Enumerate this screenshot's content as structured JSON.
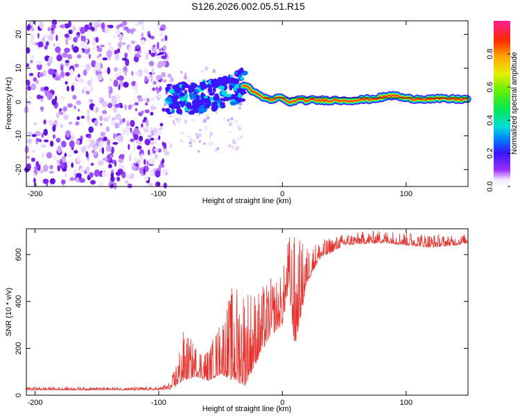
{
  "title": "S126.2026.002.05.51.R15",
  "chart_data": [
    {
      "type": "heatmap",
      "name": "spectrogram",
      "xlabel": "Height of straight line (km)",
      "ylabel": "Frequency (Hz)",
      "xlim": [
        -207,
        150
      ],
      "ylim": [
        -25,
        24
      ],
      "xticks": [
        -200,
        -100,
        0,
        100
      ],
      "yticks": [
        -20,
        -10,
        0,
        10,
        20
      ],
      "colorbar": {
        "label": "Normalized spectral amplitude",
        "range": [
          0,
          1
        ],
        "ticks": [
          0.0,
          0.2,
          0.4,
          0.6,
          0.8
        ]
      },
      "ridge": {
        "description_points": [
          {
            "x": -93,
            "y": 0.5
          },
          {
            "x": -80,
            "y": 1.0
          },
          {
            "x": -60,
            "y": 1.5
          },
          {
            "x": -45,
            "y": 3.0
          },
          {
            "x": -35,
            "y": 5.0
          },
          {
            "x": -28,
            "y": 4.5
          },
          {
            "x": -20,
            "y": 2.0
          },
          {
            "x": -10,
            "y": 0.5
          },
          {
            "x": 0,
            "y": 1.5
          },
          {
            "x": 5,
            "y": -0.5
          },
          {
            "x": 10,
            "y": 0.5
          },
          {
            "x": 20,
            "y": 0.5
          },
          {
            "x": 40,
            "y": 0.5
          },
          {
            "x": 60,
            "y": 0.5
          },
          {
            "x": 75,
            "y": 1.0
          },
          {
            "x": 90,
            "y": 2.0
          },
          {
            "x": 100,
            "y": 1.0
          },
          {
            "x": 150,
            "y": 0.8
          }
        ]
      }
    },
    {
      "type": "line",
      "name": "snr",
      "xlabel": "Height of straight line (km)",
      "ylabel": "SNR (10 * v/v)",
      "xlim": [
        -207,
        150
      ],
      "ylim": [
        0,
        710
      ],
      "xticks": [
        -200,
        -100,
        0,
        100
      ],
      "yticks": [
        0,
        200,
        400,
        600
      ],
      "series_color": "#e8322e",
      "envelope": [
        {
          "x": -207,
          "base": 22,
          "peak": 35
        },
        {
          "x": -100,
          "base": 22,
          "peak": 35
        },
        {
          "x": -90,
          "base": 25,
          "peak": 60
        },
        {
          "x": -80,
          "base": 60,
          "peak": 280
        },
        {
          "x": -70,
          "base": 80,
          "peak": 220
        },
        {
          "x": -60,
          "base": 60,
          "peak": 200
        },
        {
          "x": -50,
          "base": 90,
          "peak": 330
        },
        {
          "x": -40,
          "base": 60,
          "peak": 480
        },
        {
          "x": -30,
          "base": 40,
          "peak": 500
        },
        {
          "x": -20,
          "base": 150,
          "peak": 450
        },
        {
          "x": -10,
          "base": 250,
          "peak": 500
        },
        {
          "x": 0,
          "base": 300,
          "peak": 520
        },
        {
          "x": 5,
          "base": 450,
          "peak": 690
        },
        {
          "x": 10,
          "base": 200,
          "peak": 690
        },
        {
          "x": 20,
          "base": 480,
          "peak": 640
        },
        {
          "x": 30,
          "base": 580,
          "peak": 660
        },
        {
          "x": 50,
          "base": 640,
          "peak": 690
        },
        {
          "x": 80,
          "base": 650,
          "peak": 705
        },
        {
          "x": 100,
          "base": 640,
          "peak": 700
        },
        {
          "x": 120,
          "base": 630,
          "peak": 690
        },
        {
          "x": 140,
          "base": 640,
          "peak": 680
        },
        {
          "x": 150,
          "base": 650,
          "peak": 690
        }
      ]
    }
  ],
  "colors": {
    "snr_line": "#e8322e",
    "axis": "#000000"
  }
}
